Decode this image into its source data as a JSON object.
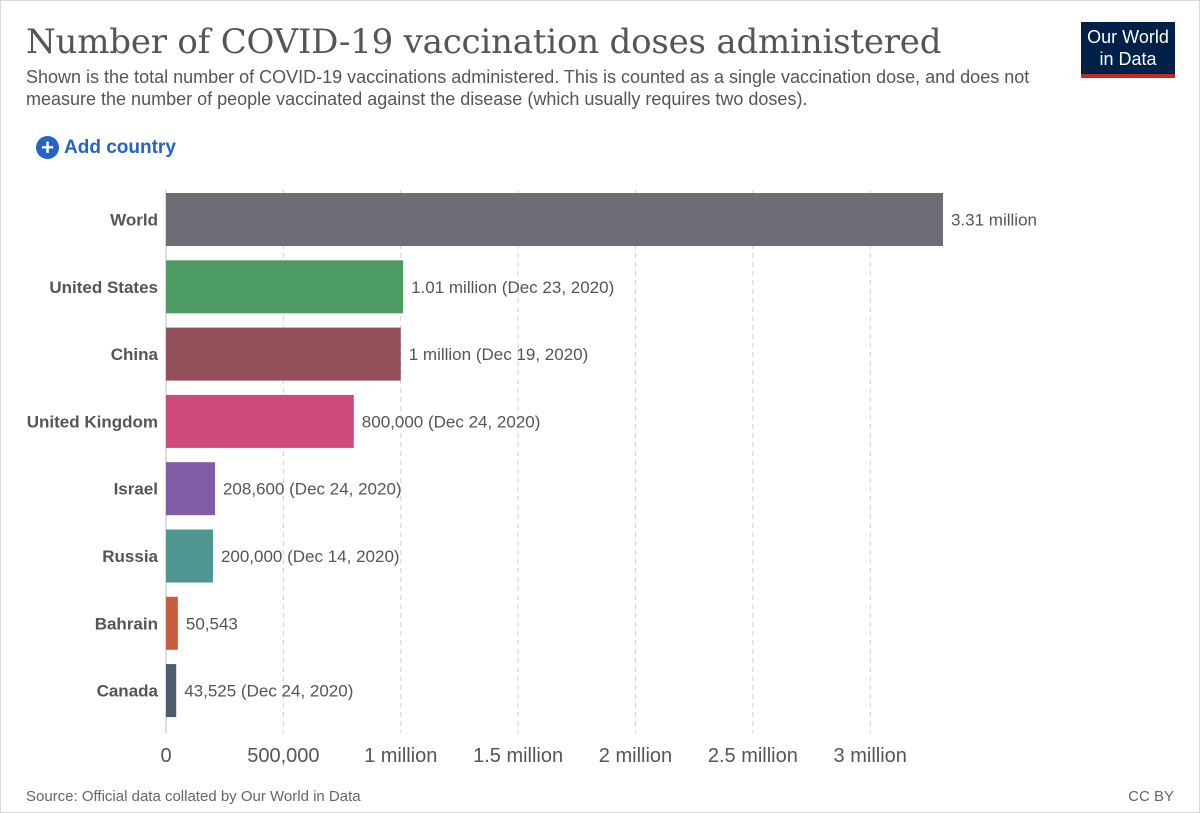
{
  "header": {
    "title": "Number of COVID-19 vaccination doses administered",
    "subtitle": "Shown is the total number of COVID-19 vaccinations administered. This is counted as a single vaccination dose, and does not measure the number of people vaccinated against the disease (which usually requires two doses).",
    "logo_line1": "Our World",
    "logo_line2": "in Data"
  },
  "controls": {
    "add_country_label": "Add country",
    "add_icon": "plus-circle-icon"
  },
  "footer": {
    "source": "Source: Official data collated by Our World in Data",
    "license": "CC BY"
  },
  "colors": {
    "logo_bg": "#002147",
    "logo_accent": "#ce261e",
    "link": "#2563c9"
  },
  "chart_data": {
    "type": "bar",
    "orientation": "horizontal",
    "categories": [
      "World",
      "United States",
      "China",
      "United Kingdom",
      "Israel",
      "Russia",
      "Bahrain",
      "Canada"
    ],
    "values": [
      3310000,
      1010000,
      1000000,
      800000,
      208600,
      200000,
      50543,
      43525
    ],
    "value_labels": [
      "3.31 million",
      "1.01 million (Dec 23, 2020)",
      "1 million (Dec 19, 2020)",
      "800,000 (Dec 24, 2020)",
      "208,600 (Dec 24, 2020)",
      "200,000 (Dec 14, 2020)",
      "50,543",
      "43,525 (Dec 24, 2020)"
    ],
    "colors": [
      "#6d6e75",
      "#4c9b63",
      "#93505a",
      "#cc4b7c",
      "#805da5",
      "#4f9690",
      "#c85d3f",
      "#4e5a70"
    ],
    "xticks": [
      0,
      500000,
      1000000,
      1500000,
      2000000,
      2500000,
      3000000
    ],
    "xtick_labels": [
      "0",
      "500,000",
      "1 million",
      "1.5 million",
      "2 million",
      "2.5 million",
      "3 million"
    ],
    "xlim": [
      0,
      3310000
    ],
    "grid": "vertical dashed"
  }
}
